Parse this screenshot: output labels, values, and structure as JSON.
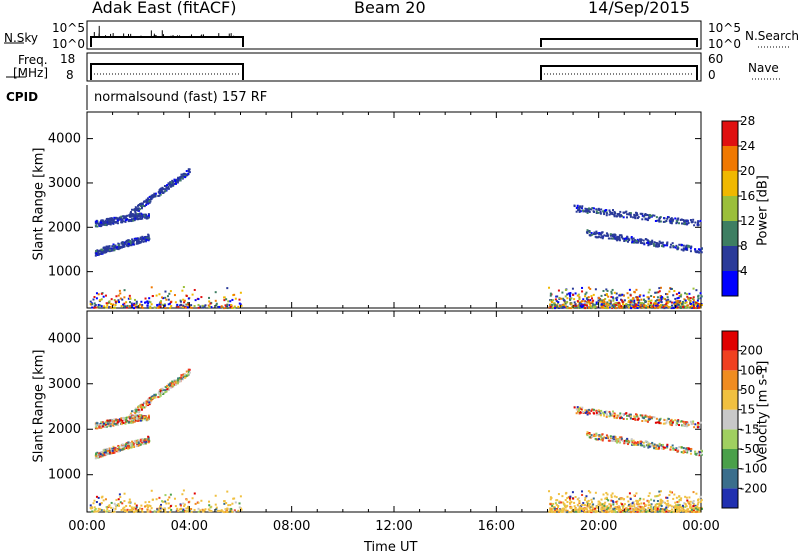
{
  "header": {
    "station": "Adak East (fitACF)",
    "beam": "Beam 20",
    "date": "14/Sep/2015"
  },
  "top_panels": {
    "nsky": {
      "label": "N.Sky",
      "tick_top": "10^5",
      "tick_bottom": "10^0"
    },
    "nsearch": {
      "label": "N.Search",
      "tick_top": "10^5",
      "tick_bottom": "10^0"
    },
    "freq": {
      "label_1": "Freq.",
      "label_2": "[MHz]",
      "tick_top": "18",
      "tick_bottom": "8"
    },
    "nave": {
      "label": "Nave",
      "tick_top": "60",
      "tick_bottom": "0"
    },
    "cpid": {
      "label": "CPID",
      "text": "normalsound (fast) 157 RF"
    }
  },
  "colors": {
    "frame": "#000000",
    "dots": "#2b3fa0"
  },
  "chart_data": [
    {
      "type": "scatter",
      "panel": "power",
      "ylabel": "Slant Range [km]",
      "xlabel": "Time UT",
      "x_ticks": [
        "00:00",
        "04:00",
        "08:00",
        "12:00",
        "16:00",
        "20:00",
        "00:00"
      ],
      "y_ticks": [
        "1000",
        "2000",
        "3000",
        "4000"
      ],
      "ylim": [
        180,
        4600
      ],
      "xlim_hours": [
        0,
        24
      ],
      "colorbar": {
        "label": "Power [dB]",
        "ticks": [
          "4",
          "8",
          "12",
          "16",
          "20",
          "24",
          "28"
        ],
        "colors": [
          "#0000ff",
          "#2a3a99",
          "#3e7e62",
          "#9bbf3a",
          "#f0b800",
          "#f07800",
          "#e01010"
        ]
      },
      "echo_bands": [
        {
          "start_h": 0.3,
          "end_h": 2.4,
          "range_start": 2100,
          "range_end": 2300
        },
        {
          "start_h": 0.3,
          "end_h": 2.4,
          "range_start": 1450,
          "range_end": 1800
        },
        {
          "start_h": 1.6,
          "end_h": 4.0,
          "range_start": 2300,
          "range_end": 3300
        },
        {
          "start_h": 19.0,
          "end_h": 24.0,
          "range_start": 2450,
          "range_end": 2100
        },
        {
          "start_h": 19.5,
          "end_h": 24.0,
          "range_start": 1900,
          "range_end": 1500
        }
      ]
    },
    {
      "type": "scatter",
      "panel": "velocity",
      "ylabel": "Slant Range [km]",
      "xlabel": "Time UT",
      "x_ticks": [
        "00:00",
        "04:00",
        "08:00",
        "12:00",
        "16:00",
        "20:00",
        "00:00"
      ],
      "y_ticks": [
        "1000",
        "2000",
        "3000",
        "4000"
      ],
      "ylim": [
        180,
        4600
      ],
      "xlim_hours": [
        0,
        24
      ],
      "colorbar": {
        "label": "Velocity [m s-1]",
        "ticks": [
          "200",
          "100",
          "50",
          "15",
          "-15",
          "-50",
          "-100",
          "-200"
        ],
        "colors": [
          "#2030b0",
          "#3a6e8c",
          "#4aa04a",
          "#a0d060",
          "#c8c8c8",
          "#f0c040",
          "#f08c20",
          "#f04020",
          "#e00000"
        ]
      }
    }
  ]
}
